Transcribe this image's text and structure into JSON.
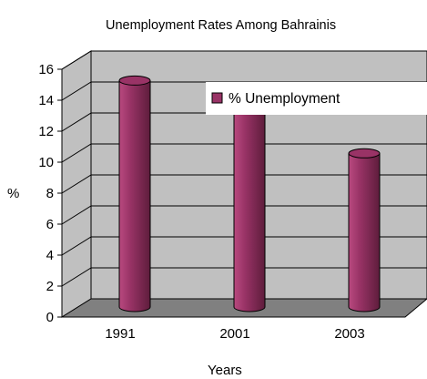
{
  "chart_data": {
    "type": "bar",
    "title": "Unemployment Rates Among Bahrainis",
    "xlabel": "Years",
    "ylabel": "%",
    "categories": [
      "1991",
      "2001",
      "2003"
    ],
    "series": [
      {
        "name": "% Unemployment",
        "values": [
          14.8,
          13.0,
          10.1
        ]
      }
    ],
    "ylim": [
      0,
      16
    ],
    "yticks": [
      "0",
      "2",
      "4",
      "6",
      "8",
      "10",
      "12",
      "14",
      "16"
    ],
    "grid": true,
    "legend": "top-right",
    "style": "3d-cylinder",
    "colors": {
      "bar": "#993366",
      "bar_highlight": "#b94a80",
      "bar_dark": "#5e1d3c",
      "wall": "#c0c0c0",
      "floor": "#808080"
    }
  }
}
